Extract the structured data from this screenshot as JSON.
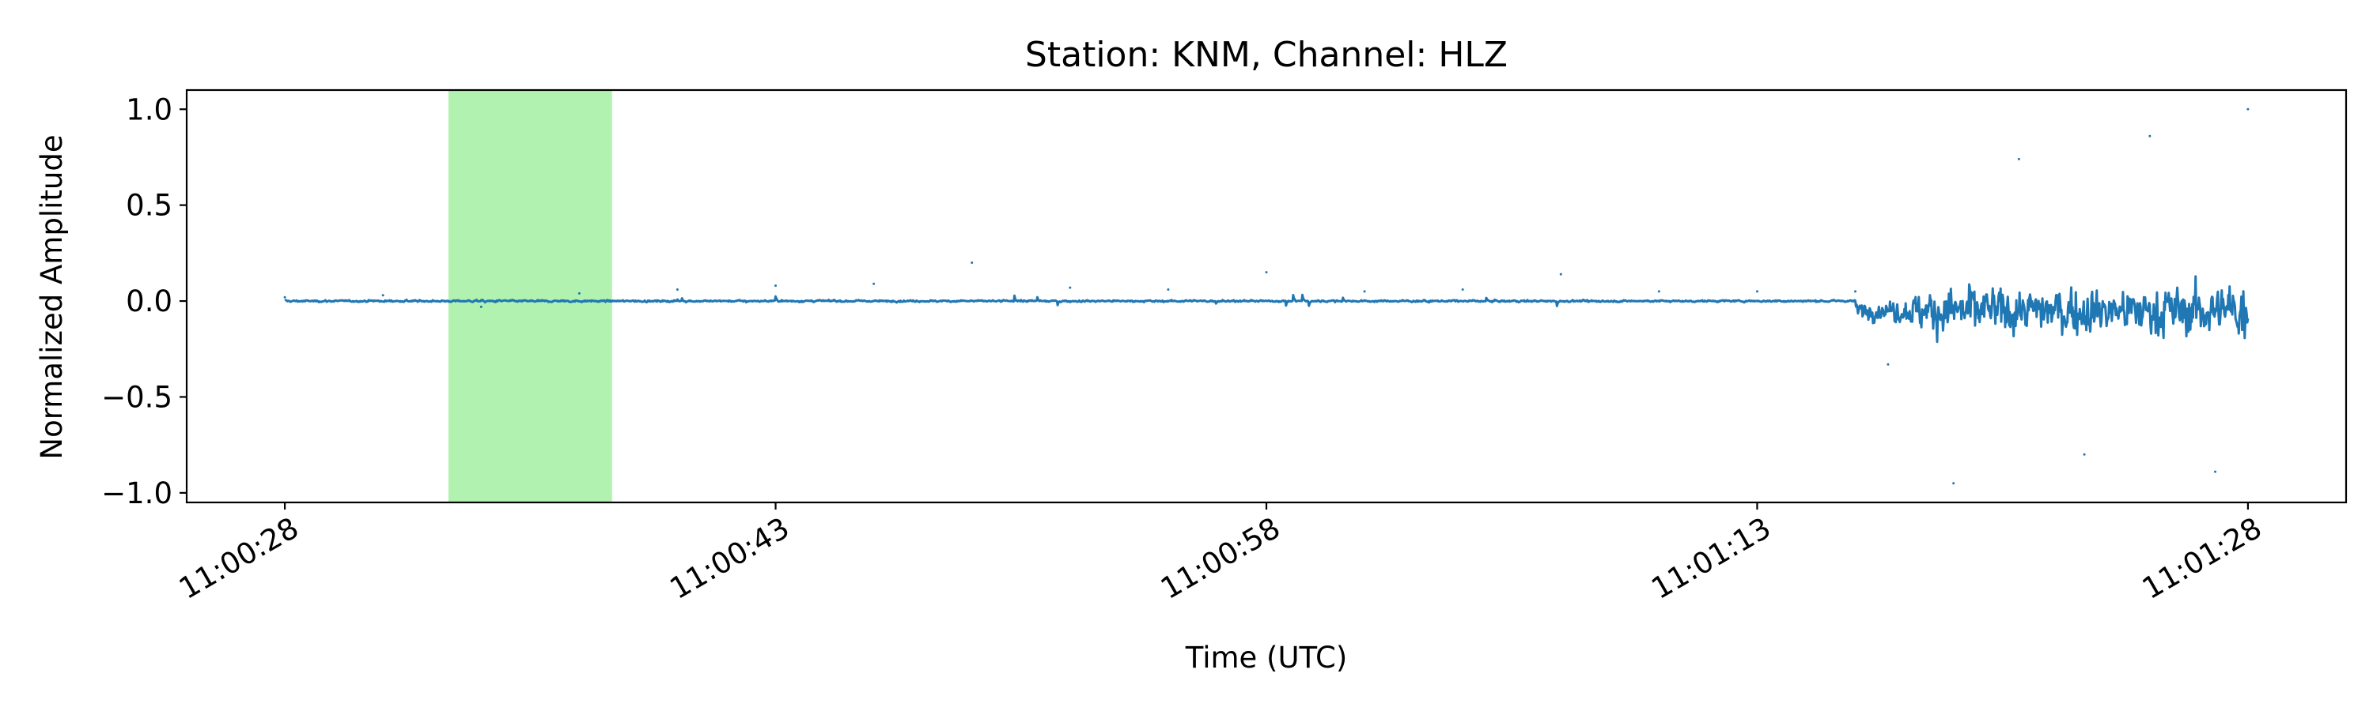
{
  "chart_data": {
    "type": "line",
    "title": "Station: KNM, Channel: HLZ",
    "xlabel": "Time (UTC)",
    "ylabel": "Normalized Amplitude",
    "x_unit": "seconds",
    "xlim": [
      "11:00:25",
      "11:01:31"
    ],
    "ylim": [
      -1.05,
      1.1
    ],
    "x_ticks": [
      {
        "value": "11:00:28",
        "label": "11:00:28"
      },
      {
        "value": "11:00:43",
        "label": "11:00:43"
      },
      {
        "value": "11:00:58",
        "label": "11:00:58"
      },
      {
        "value": "11:01:13",
        "label": "11:01:13"
      },
      {
        "value": "11:01:28",
        "label": "11:01:28"
      }
    ],
    "y_ticks": [
      {
        "value": -1.0,
        "label": "−1.0"
      },
      {
        "value": -0.5,
        "label": "−0.5"
      },
      {
        "value": 0.0,
        "label": "0.0"
      },
      {
        "value": 0.5,
        "label": "0.5"
      },
      {
        "value": 1.0,
        "label": "1.0"
      }
    ],
    "grid": false,
    "highlight_window": {
      "start": "11:00:33",
      "end": "11:00:38",
      "color": "#b2f2b0"
    },
    "series": [
      {
        "color": "#1f77b4",
        "x": [
          "11:00:28",
          "11:00:31",
          "11:00:34",
          "11:00:37",
          "11:00:40",
          "11:00:43",
          "11:00:46",
          "11:00:49",
          "11:00:52",
          "11:00:55",
          "11:00:58",
          "11:01:01",
          "11:01:04",
          "11:01:07",
          "11:01:10",
          "11:01:13",
          "11:01:16",
          "11:01:17",
          "11:01:19",
          "11:01:21",
          "11:01:23",
          "11:01:25",
          "11:01:27",
          "11:01:28"
        ],
        "y": [
          0.02,
          0.03,
          -0.03,
          0.04,
          0.06,
          0.08,
          0.09,
          0.2,
          0.07,
          0.06,
          0.15,
          0.05,
          0.06,
          0.14,
          0.05,
          0.05,
          0.05,
          -0.33,
          -0.95,
          0.74,
          -0.8,
          0.86,
          -0.89,
          1.0
        ]
      }
    ]
  }
}
